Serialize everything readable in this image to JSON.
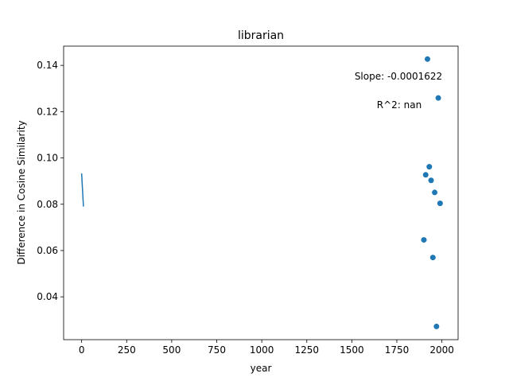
{
  "chart_data": {
    "type": "scatter",
    "title": "librarian",
    "xlabel": "year",
    "ylabel": "Difference in Cosine Similarity",
    "xlim": [
      -100,
      2090
    ],
    "ylim": [
      0.0215,
      0.1483
    ],
    "xticks": [
      0,
      250,
      500,
      750,
      1000,
      1250,
      1500,
      1750,
      2000
    ],
    "yticks": [
      0.04,
      0.06,
      0.08,
      0.1,
      0.12,
      0.14
    ],
    "xtick_labels": [
      "0",
      "250",
      "500",
      "750",
      "1000",
      "1250",
      "1500",
      "1750",
      "2000"
    ],
    "ytick_labels": [
      "0.04",
      "0.06",
      "0.08",
      "0.10",
      "0.12",
      "0.14"
    ],
    "grid": false,
    "legend": "none",
    "series": [
      {
        "points": [
          {
            "x": 1900,
            "y": 0.0646
          },
          {
            "x": 1910,
            "y": 0.0927
          },
          {
            "x": 1920,
            "y": 0.1427
          },
          {
            "x": 1930,
            "y": 0.0962
          },
          {
            "x": 1940,
            "y": 0.0903
          },
          {
            "x": 1950,
            "y": 0.057
          },
          {
            "x": 1960,
            "y": 0.0851
          },
          {
            "x": 1970,
            "y": 0.0272
          },
          {
            "x": 1980,
            "y": 0.1259
          },
          {
            "x": 1990,
            "y": 0.0804
          }
        ]
      }
    ],
    "fit_line": {
      "x": [
        0,
        10
      ],
      "y": [
        0.0933,
        0.079
      ]
    },
    "annotations": [
      {
        "text": "Slope: -0.0001622"
      },
      {
        "text": "R^2: nan"
      }
    ],
    "colors": {
      "marker": "#1f77b4",
      "line": "#1f77b4",
      "axes": "#000000",
      "background": "#ffffff"
    }
  }
}
